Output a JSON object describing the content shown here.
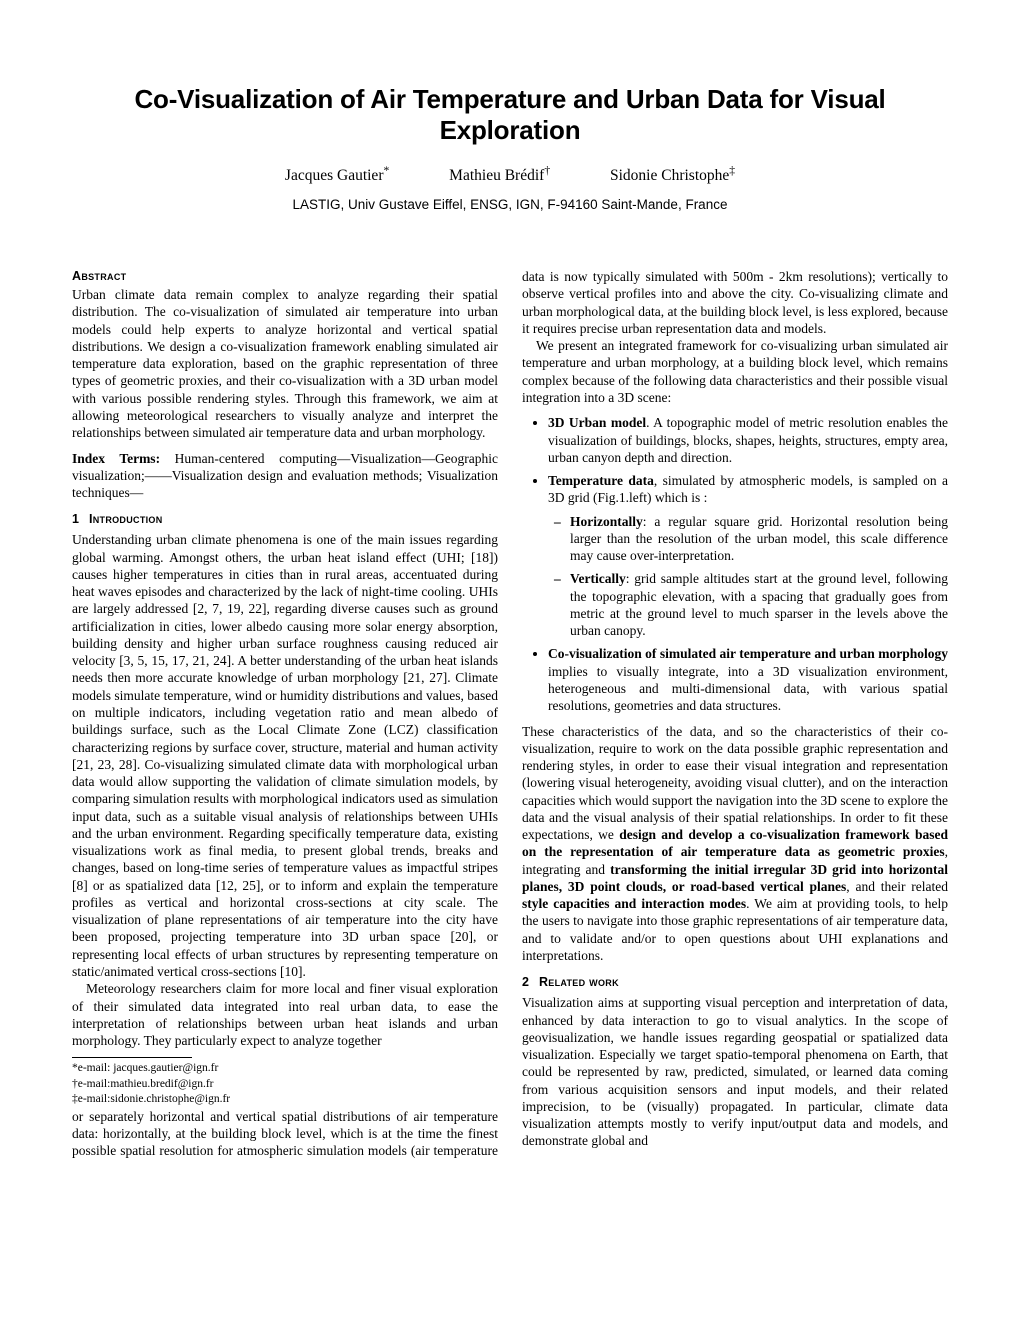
{
  "title": "Co-Visualization of Air Temperature and Urban Data for Visual Exploration",
  "authors": [
    {
      "name": "Jacques Gautier",
      "mark": "*"
    },
    {
      "name": "Mathieu Brédif",
      "mark": "†"
    },
    {
      "name": "Sidonie Christophe",
      "mark": "‡"
    }
  ],
  "affiliation": "LASTIG, Univ Gustave Eiffel, ENSG, IGN, F-94160 Saint-Mande, France",
  "headings": {
    "abstract": "Abstract",
    "intro_num": "1",
    "intro": "Introduction",
    "related_num": "2",
    "related": "Related work"
  },
  "index_terms_label": "Index Terms:",
  "index_terms_text": "Human-centered computing—Visualization—Geographic visualization;——Visualization design and evaluation methods; Visualization techniques—",
  "abstract": "Urban climate data remain complex to analyze regarding their spatial distribution. The co-visualization of simulated air temperature into urban models could help experts to analyze horizontal and vertical spatial distributions. We design a co-visualization framework enabling simulated air temperature data exploration, based on the graphic representation of three types of geometric proxies, and their co-visualization with a 3D urban model with various possible rendering styles. Through this framework, we aim at allowing meteorological researchers to visually analyze and interpret the relationships between simulated air temperature data and urban morphology.",
  "intro_p1": "Understanding urban climate phenomena is one of the main issues regarding global warming. Amongst others, the urban heat island effect (UHI; [18]) causes higher temperatures in cities than in rural areas, accentuated during heat waves episodes and characterized by the lack of night-time cooling. UHIs are largely addressed [2, 7, 19, 22], regarding diverse causes such as ground artificialization in cities, lower albedo causing more solar energy absorption, building density and higher urban surface roughness causing reduced air velocity [3, 5, 15, 17, 21, 24]. A better understanding of the urban heat islands needs then more accurate knowledge of urban morphology [21, 27]. Climate models simulate temperature, wind or humidity distributions and values, based on multiple indicators, including vegetation ratio and mean albedo of buildings surface, such as the Local Climate Zone (LCZ) classification characterizing regions by surface cover, structure, material and human activity [21, 23, 28]. Co-visualizing simulated climate data with morphological urban data would allow supporting the validation of climate simulation models, by comparing simulation results with morphological indicators used as simulation input data, such as a suitable visual analysis of relationships between UHIs and the urban environment. Regarding specifically temperature data, existing visualizations work as final media, to present global trends, breaks and changes, based on long-time series of temperature values as impactful stripes [8] or as spatialized data [12, 25], or to inform and explain the temperature profiles as vertical and horizontal cross-sections at city scale. The visualization of plane representations of air temperature into the city have been proposed, projecting temperature into 3D urban space [20], or representing local effects of urban structures by representing temperature on static/animated vertical cross-sections [10].",
  "intro_p2": "Meteorology researchers claim for more local and finer visual exploration of their simulated data integrated into real urban data, to ease the interpretation of relationships between urban heat islands and urban morphology. They particularly expect to analyze together",
  "col2_cont": "or separately horizontal and vertical spatial distributions of air temperature data: horizontally, at the building block level, which is at the time the finest possible spatial resolution for atmospheric simulation models (air temperature data is now typically simulated with 500m - 2km resolutions); vertically to observe vertical profiles into and above the city. Co-visualizing climate and urban morphological data, at the building block level, is less explored, because it requires precise urban representation data and models.",
  "col2_p2": "We present an integrated framework for co-visualizing urban simulated air temperature and urban morphology, at a building block level, which remains complex because of the following data characteristics and their possible visual integration into a 3D scene:",
  "bullets": {
    "b1_lead": "3D Urban model",
    "b1_rest": ". A topographic model of metric resolution enables the visualization of buildings, blocks, shapes, heights, structures, empty area, urban canyon depth and direction.",
    "b2_lead": "Temperature data",
    "b2_rest": ", simulated by atmospheric models, is sampled on a 3D grid (Fig.1.left) which is :",
    "b2a_lead": "Horizontally",
    "b2a_rest": ": a regular square grid. Horizontal resolution being larger than the resolution of the urban model, this scale difference may cause over-interpretation.",
    "b2b_lead": "Vertically",
    "b2b_rest": ": grid sample altitudes start at the ground level, following the topographic elevation, with a spacing that gradually goes from metric at the ground level to much sparser in the levels above the urban canopy.",
    "b3_lead": "Co-visualization of simulated air temperature and urban morphology",
    "b3_rest": " implies to visually integrate, into a 3D visualization environment, heterogeneous and multi-dimensional data, with various spatial resolutions, geometries and data structures."
  },
  "col2_p3a": "These characteristics of the data, and so the characteristics of their co-visualization, require to work on the data possible graphic representation and rendering styles, in order to ease their visual integration and representation (lowering visual heterogeneity, avoiding visual clutter), and on the interaction capacities which would support the navigation into the 3D scene to explore the data and the visual analysis of their spatial relationships. In order to fit these expectations, we ",
  "col2_p3b": "design and develop a co-visualization framework based on the representation of air temperature data as geometric proxies",
  "col2_p3c": ", integrating and ",
  "col2_p3d": "transforming the initial irregular 3D grid into horizontal planes, 3D point clouds, or road-based vertical planes",
  "col2_p3e": ", and their related ",
  "col2_p3f": "style capacities and interaction modes",
  "col2_p3g": ". We aim at providing tools, to help the users to navigate into those graphic representations of air temperature data, and to validate and/or to open questions about UHI explanations and interpretations.",
  "related_p1": "Visualization aims at supporting visual perception and interpretation of data, enhanced by data interaction to go to visual analytics. In the scope of geovisualization, we handle issues regarding geospatial or spatialized data visualization. Especially we target spatio-temporal phenomena on Earth, that could be represented by raw, predicted, simulated, or learned data coming from various acquisition sensors and input models, and their related imprecision, to be (visually) propagated. In particular, climate data visualization attempts mostly to verify input/output data and models, and demonstrate global and",
  "footnotes": {
    "a": "*e-mail: jacques.gautier@ign.fr",
    "b": "†e-mail:mathieu.bredif@ign.fr",
    "c": "‡e-mail:sidonie.christophe@ign.fr"
  }
}
